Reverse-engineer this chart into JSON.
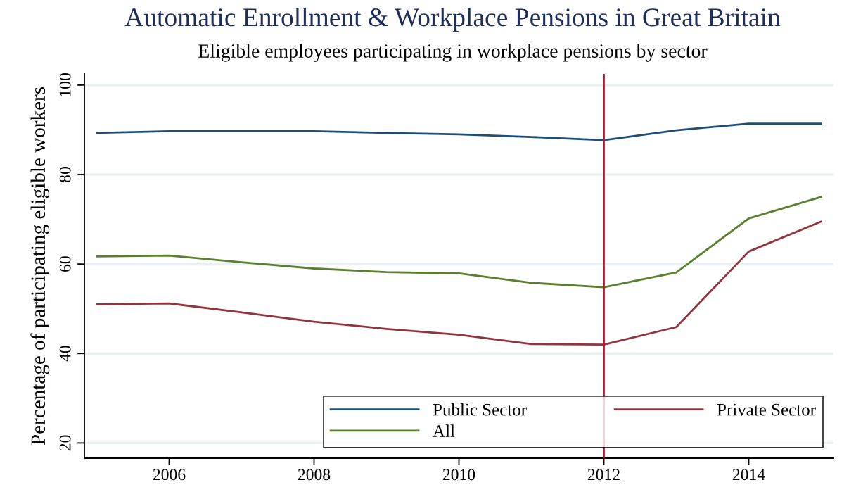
{
  "chart_data": {
    "type": "line",
    "title": "Automatic Enrollment & Workplace Pensions in Great Britain",
    "subtitle": "Eligible employees participating in workplace pensions by sector",
    "ylabel": "Percentage of participating eligible workers",
    "x": [
      2005,
      2006,
      2007,
      2008,
      2009,
      2010,
      2011,
      2012,
      2013,
      2014,
      2015
    ],
    "series": [
      {
        "name": "Public Sector",
        "color": "#1b4f7a",
        "values": [
          89.3,
          89.7,
          89.7,
          89.7,
          89.3,
          89.0,
          88.4,
          87.7,
          89.9,
          91.4,
          91.4
        ]
      },
      {
        "name": "Private Sector",
        "color": "#93343c",
        "values": [
          51.0,
          51.2,
          49.2,
          47.1,
          45.5,
          44.2,
          42.1,
          42.0,
          45.9,
          62.8,
          69.5
        ]
      },
      {
        "name": "All",
        "color": "#5a7f2e",
        "values": [
          61.7,
          61.9,
          60.4,
          59.0,
          58.2,
          57.9,
          55.8,
          54.8,
          58.1,
          70.2,
          75.0
        ]
      }
    ],
    "xlim": [
      2004.83,
      2015.17
    ],
    "ylim": [
      16.6,
      102.5
    ],
    "xticks": [
      2006,
      2008,
      2010,
      2012,
      2014
    ],
    "yticks": [
      20,
      40,
      60,
      80,
      100
    ],
    "ref_lines": [
      {
        "axis": "x",
        "value": 2012,
        "color": "#c8102e"
      }
    ],
    "grid": "y",
    "legend": "bottom right",
    "marker": "none",
    "line_style": "solid"
  }
}
